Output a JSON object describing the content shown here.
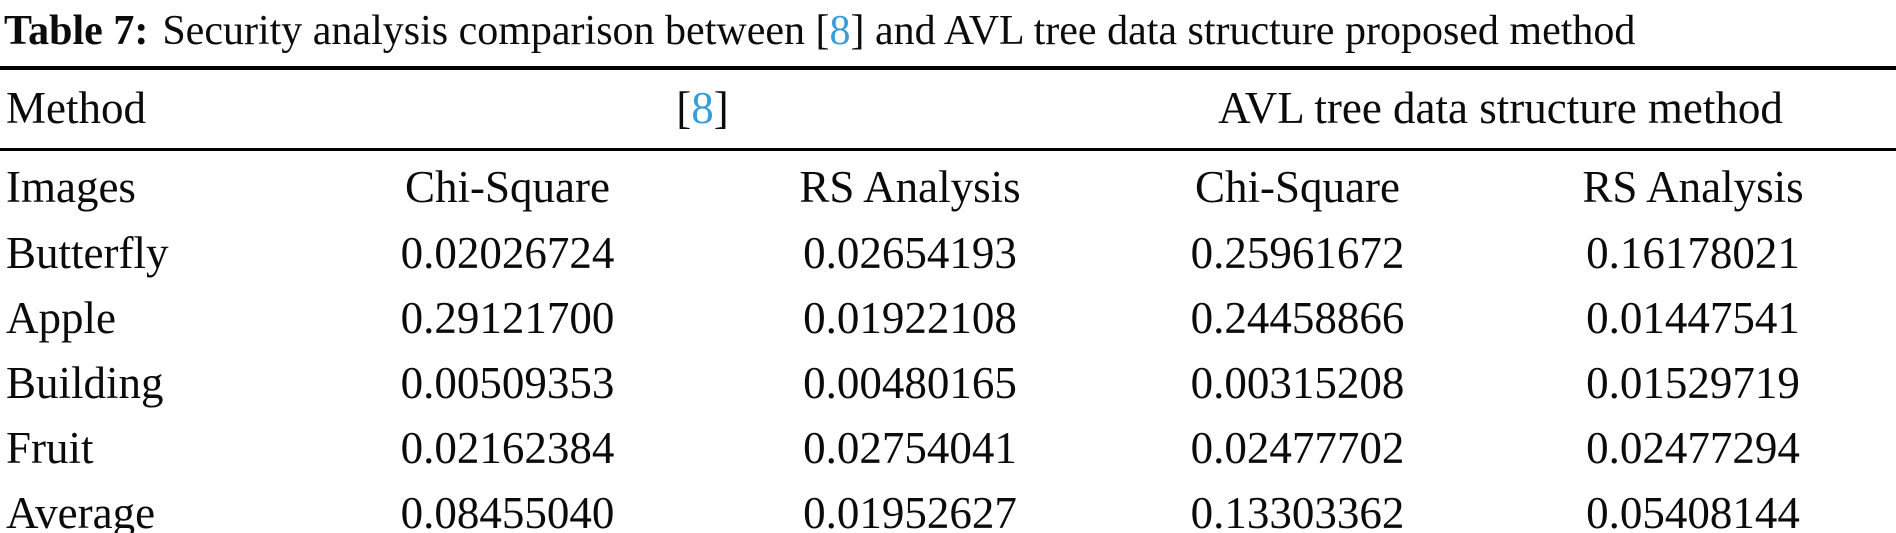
{
  "colors": {
    "link_blue": "#3a9cd8",
    "text": "#0b0b0b",
    "background": "#ffffff"
  },
  "caption": {
    "label": "Table 7:",
    "text_before_ref": "Security analysis comparison between [",
    "ref": "8",
    "text_after_ref": "] and AVL tree data structure proposed method"
  },
  "table": {
    "method_header": {
      "col1": "Method",
      "ref_open": "[",
      "ref": "8",
      "ref_close": "]",
      "group2": "AVL tree data structure method"
    },
    "columns": [
      "Images",
      "Chi-Square",
      "RS Analysis",
      "Chi-Square",
      "RS Analysis"
    ],
    "rows": [
      {
        "image": "Butterfly",
        "values": [
          "0.02026724",
          "0.02654193",
          "0.25961672",
          "0.16178021"
        ]
      },
      {
        "image": "Apple",
        "values": [
          "0.29121700",
          "0.01922108",
          "0.24458866",
          "0.01447541"
        ]
      },
      {
        "image": "Building",
        "values": [
          "0.00509353",
          "0.00480165",
          "0.00315208",
          "0.01529719"
        ]
      },
      {
        "image": "Fruit",
        "values": [
          "0.02162384",
          "0.02754041",
          "0.02477702",
          "0.02477294"
        ]
      },
      {
        "image": "Average",
        "values": [
          "0.08455040",
          "0.01952627",
          "0.13303362",
          "0.05408144"
        ]
      }
    ]
  }
}
